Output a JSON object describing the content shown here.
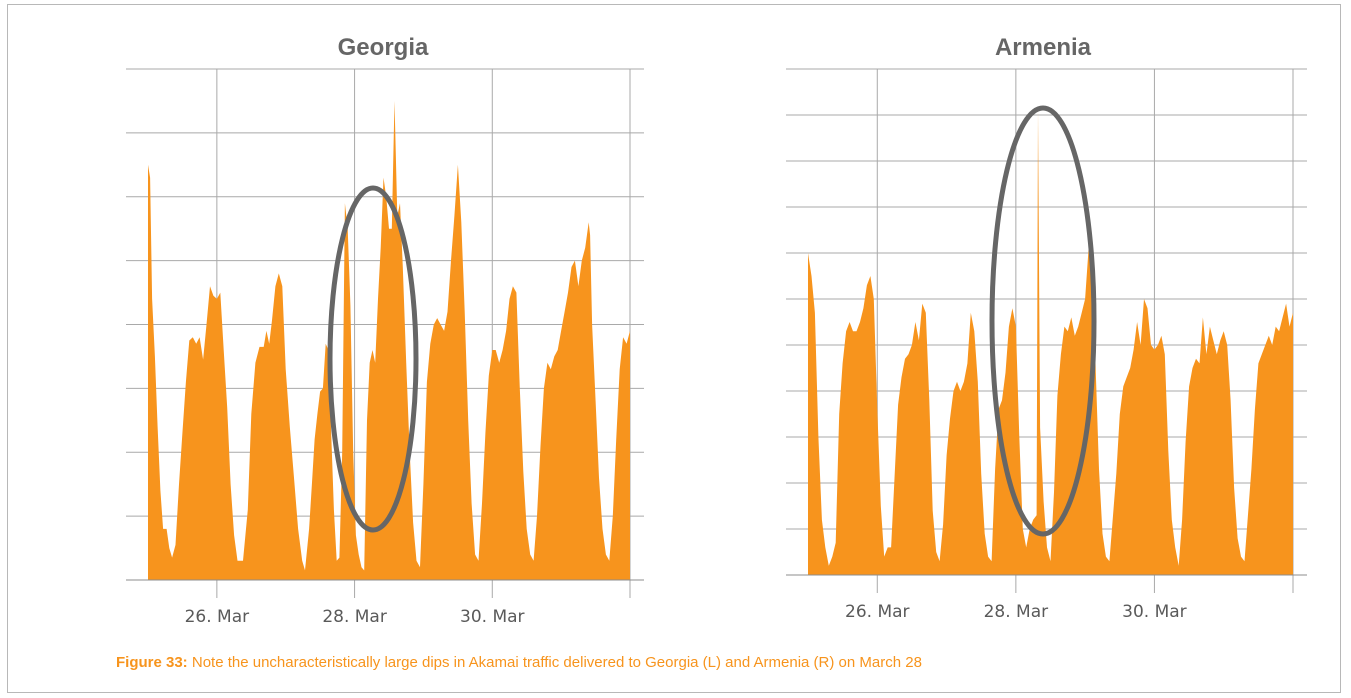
{
  "colors": {
    "area": "#f7941d",
    "ellipse": "#666666",
    "grid": "#a9a9a9",
    "caption": "#f7941d"
  },
  "caption": {
    "label": "Figure 33:",
    "text": "Note the uncharacteristically large dips in Akamai traffic delivered to Georgia (L) and Armenia (R) on March 28"
  },
  "chart_data": [
    {
      "type": "area",
      "title": "Georgia",
      "xlabel": "",
      "ylabel": "",
      "x_unit": "days (March)",
      "xlim": [
        25.0,
        32.0
      ],
      "ylim": [
        0,
        8
      ],
      "x_ticks": [
        {
          "x": 26,
          "label": "26. Mar"
        },
        {
          "x": 28,
          "label": "28. Mar"
        },
        {
          "x": 30,
          "label": "30. Mar"
        }
      ],
      "grid": true,
      "annotation": {
        "shape": "ellipse",
        "highlights": "dip around 28. Mar"
      },
      "points": [
        [
          25.0,
          6.5
        ],
        [
          25.03,
          6.3
        ],
        [
          25.06,
          4.4
        ],
        [
          25.1,
          3.5
        ],
        [
          25.14,
          2.4
        ],
        [
          25.18,
          1.4
        ],
        [
          25.22,
          0.8
        ],
        [
          25.27,
          0.8
        ],
        [
          25.31,
          0.5
        ],
        [
          25.35,
          0.35
        ],
        [
          25.4,
          0.55
        ],
        [
          25.45,
          1.5
        ],
        [
          25.5,
          2.3
        ],
        [
          25.55,
          3.1
        ],
        [
          25.6,
          3.75
        ],
        [
          25.65,
          3.8
        ],
        [
          25.7,
          3.7
        ],
        [
          25.75,
          3.8
        ],
        [
          25.8,
          3.45
        ],
        [
          25.85,
          4.0
        ],
        [
          25.9,
          4.6
        ],
        [
          25.95,
          4.45
        ],
        [
          26.0,
          4.4
        ],
        [
          26.05,
          4.5
        ],
        [
          26.1,
          3.6
        ],
        [
          26.15,
          2.7
        ],
        [
          26.2,
          1.5
        ],
        [
          26.25,
          0.7
        ],
        [
          26.3,
          0.3
        ],
        [
          26.38,
          0.3
        ],
        [
          26.45,
          1.1
        ],
        [
          26.5,
          2.6
        ],
        [
          26.56,
          3.4
        ],
        [
          26.62,
          3.65
        ],
        [
          26.68,
          3.65
        ],
        [
          26.72,
          3.9
        ],
        [
          26.76,
          3.7
        ],
        [
          26.8,
          4.05
        ],
        [
          26.85,
          4.6
        ],
        [
          26.9,
          4.8
        ],
        [
          26.95,
          4.6
        ],
        [
          27.0,
          3.3
        ],
        [
          27.06,
          2.4
        ],
        [
          27.12,
          1.6
        ],
        [
          27.18,
          0.8
        ],
        [
          27.24,
          0.3
        ],
        [
          27.28,
          0.15
        ],
        [
          27.34,
          0.8
        ],
        [
          27.38,
          1.5
        ],
        [
          27.42,
          2.2
        ],
        [
          27.46,
          2.6
        ],
        [
          27.5,
          2.95
        ],
        [
          27.54,
          3.0
        ],
        [
          27.58,
          3.7
        ],
        [
          27.62,
          3.6
        ],
        [
          27.66,
          2.3
        ],
        [
          27.7,
          1.1
        ],
        [
          27.74,
          0.3
        ],
        [
          27.78,
          0.35
        ],
        [
          27.82,
          2.0
        ],
        [
          27.86,
          5.9
        ],
        [
          27.9,
          5.5
        ],
        [
          27.94,
          4.3
        ],
        [
          27.98,
          2.0
        ],
        [
          28.02,
          0.7
        ],
        [
          28.06,
          0.4
        ],
        [
          28.1,
          0.2
        ],
        [
          28.14,
          0.15
        ],
        [
          28.18,
          2.5
        ],
        [
          28.22,
          3.4
        ],
        [
          28.26,
          3.6
        ],
        [
          28.3,
          3.4
        ],
        [
          28.34,
          4.4
        ],
        [
          28.38,
          5.2
        ],
        [
          28.42,
          6.3
        ],
        [
          28.46,
          6.0
        ],
        [
          28.5,
          5.5
        ],
        [
          28.54,
          5.5
        ],
        [
          28.58,
          7.5
        ],
        [
          28.62,
          5.7
        ],
        [
          28.66,
          5.9
        ],
        [
          28.7,
          4.9
        ],
        [
          28.75,
          3.4
        ],
        [
          28.8,
          2.0
        ],
        [
          28.85,
          0.9
        ],
        [
          28.9,
          0.3
        ],
        [
          28.95,
          0.2
        ],
        [
          29.0,
          1.5
        ],
        [
          29.05,
          3.1
        ],
        [
          29.1,
          3.7
        ],
        [
          29.15,
          4.0
        ],
        [
          29.2,
          4.1
        ],
        [
          29.25,
          4.0
        ],
        [
          29.3,
          3.9
        ],
        [
          29.35,
          4.2
        ],
        [
          29.4,
          5.0
        ],
        [
          29.45,
          5.7
        ],
        [
          29.5,
          6.5
        ],
        [
          29.55,
          5.6
        ],
        [
          29.6,
          4.2
        ],
        [
          29.65,
          2.5
        ],
        [
          29.7,
          1.2
        ],
        [
          29.75,
          0.4
        ],
        [
          29.8,
          0.3
        ],
        [
          29.85,
          1.2
        ],
        [
          29.9,
          2.3
        ],
        [
          29.95,
          3.2
        ],
        [
          30.0,
          3.6
        ],
        [
          30.05,
          3.6
        ],
        [
          30.1,
          3.4
        ],
        [
          30.15,
          3.6
        ],
        [
          30.2,
          3.9
        ],
        [
          30.25,
          4.4
        ],
        [
          30.3,
          4.6
        ],
        [
          30.35,
          4.5
        ],
        [
          30.4,
          3.0
        ],
        [
          30.45,
          1.7
        ],
        [
          30.5,
          0.8
        ],
        [
          30.55,
          0.4
        ],
        [
          30.6,
          0.3
        ],
        [
          30.65,
          1.0
        ],
        [
          30.7,
          2.1
        ],
        [
          30.75,
          3.0
        ],
        [
          30.8,
          3.4
        ],
        [
          30.85,
          3.3
        ],
        [
          30.9,
          3.5
        ],
        [
          30.95,
          3.6
        ],
        [
          31.0,
          3.9
        ],
        [
          31.05,
          4.2
        ],
        [
          31.1,
          4.5
        ],
        [
          31.15,
          4.9
        ],
        [
          31.2,
          5.0
        ],
        [
          31.25,
          4.6
        ],
        [
          31.3,
          5.0
        ],
        [
          31.35,
          5.2
        ],
        [
          31.4,
          5.6
        ],
        [
          31.42,
          5.4
        ],
        [
          31.45,
          4.0
        ],
        [
          31.5,
          2.8
        ],
        [
          31.55,
          1.6
        ],
        [
          31.6,
          0.8
        ],
        [
          31.65,
          0.4
        ],
        [
          31.7,
          0.3
        ],
        [
          31.75,
          1.0
        ],
        [
          31.8,
          2.2
        ],
        [
          31.85,
          3.3
        ],
        [
          31.9,
          3.8
        ],
        [
          31.95,
          3.7
        ],
        [
          32.0,
          3.9
        ]
      ]
    },
    {
      "type": "area",
      "title": "Armenia",
      "xlabel": "",
      "ylabel": "",
      "x_unit": "days (March)",
      "xlim": [
        25.0,
        32.0
      ],
      "ylim": [
        0,
        11
      ],
      "x_ticks": [
        {
          "x": 26,
          "label": "26. Mar"
        },
        {
          "x": 28,
          "label": "28. Mar"
        },
        {
          "x": 30,
          "label": "30. Mar"
        }
      ],
      "grid": true,
      "annotation": {
        "shape": "ellipse",
        "highlights": "dip around 28. Mar"
      },
      "points": [
        [
          25.0,
          7.0
        ],
        [
          25.05,
          6.5
        ],
        [
          25.1,
          5.7
        ],
        [
          25.15,
          3.0
        ],
        [
          25.2,
          1.2
        ],
        [
          25.25,
          0.6
        ],
        [
          25.3,
          0.2
        ],
        [
          25.35,
          0.4
        ],
        [
          25.4,
          0.7
        ],
        [
          25.45,
          3.5
        ],
        [
          25.5,
          4.6
        ],
        [
          25.55,
          5.3
        ],
        [
          25.6,
          5.5
        ],
        [
          25.65,
          5.3
        ],
        [
          25.7,
          5.3
        ],
        [
          25.75,
          5.5
        ],
        [
          25.8,
          5.8
        ],
        [
          25.85,
          6.3
        ],
        [
          25.9,
          6.5
        ],
        [
          25.95,
          6.0
        ],
        [
          26.0,
          3.6
        ],
        [
          26.05,
          1.5
        ],
        [
          26.1,
          0.4
        ],
        [
          26.15,
          0.6
        ],
        [
          26.2,
          0.6
        ],
        [
          26.3,
          3.7
        ],
        [
          26.35,
          4.3
        ],
        [
          26.4,
          4.7
        ],
        [
          26.45,
          4.8
        ],
        [
          26.5,
          5.0
        ],
        [
          26.55,
          5.5
        ],
        [
          26.6,
          5.1
        ],
        [
          26.65,
          5.9
        ],
        [
          26.7,
          5.7
        ],
        [
          26.75,
          3.8
        ],
        [
          26.8,
          1.4
        ],
        [
          26.85,
          0.5
        ],
        [
          26.9,
          0.3
        ],
        [
          26.95,
          1.1
        ],
        [
          27.0,
          2.6
        ],
        [
          27.05,
          3.4
        ],
        [
          27.1,
          4.0
        ],
        [
          27.15,
          4.2
        ],
        [
          27.2,
          4.0
        ],
        [
          27.25,
          4.2
        ],
        [
          27.3,
          4.6
        ],
        [
          27.35,
          5.7
        ],
        [
          27.4,
          5.3
        ],
        [
          27.45,
          4.2
        ],
        [
          27.5,
          2.2
        ],
        [
          27.55,
          0.9
        ],
        [
          27.6,
          0.4
        ],
        [
          27.65,
          0.3
        ],
        [
          27.7,
          2.3
        ],
        [
          27.75,
          3.6
        ],
        [
          27.8,
          3.8
        ],
        [
          27.85,
          4.4
        ],
        [
          27.9,
          5.4
        ],
        [
          27.95,
          5.8
        ],
        [
          28.0,
          5.4
        ],
        [
          28.05,
          3.0
        ],
        [
          28.1,
          1.0
        ],
        [
          28.15,
          0.6
        ],
        [
          28.2,
          1.0
        ],
        [
          28.25,
          1.2
        ],
        [
          28.3,
          1.3
        ],
        [
          28.32,
          10.1
        ],
        [
          28.35,
          3.2
        ],
        [
          28.4,
          1.6
        ],
        [
          28.45,
          0.6
        ],
        [
          28.5,
          0.3
        ],
        [
          28.55,
          1.8
        ],
        [
          28.6,
          3.9
        ],
        [
          28.65,
          4.8
        ],
        [
          28.7,
          5.4
        ],
        [
          28.75,
          5.3
        ],
        [
          28.8,
          5.6
        ],
        [
          28.85,
          5.2
        ],
        [
          28.9,
          5.4
        ],
        [
          28.95,
          5.7
        ],
        [
          29.0,
          6.0
        ],
        [
          29.05,
          7.1
        ],
        [
          29.1,
          6.6
        ],
        [
          29.15,
          4.6
        ],
        [
          29.2,
          2.3
        ],
        [
          29.25,
          0.9
        ],
        [
          29.3,
          0.4
        ],
        [
          29.35,
          0.3
        ],
        [
          29.45,
          2.2
        ],
        [
          29.5,
          3.5
        ],
        [
          29.55,
          4.1
        ],
        [
          29.6,
          4.3
        ],
        [
          29.65,
          4.5
        ],
        [
          29.7,
          4.9
        ],
        [
          29.75,
          5.5
        ],
        [
          29.8,
          5.0
        ],
        [
          29.85,
          6.0
        ],
        [
          29.9,
          5.8
        ],
        [
          29.95,
          5.0
        ],
        [
          30.0,
          4.9
        ],
        [
          30.05,
          5.0
        ],
        [
          30.1,
          5.2
        ],
        [
          30.15,
          4.8
        ],
        [
          30.2,
          2.7
        ],
        [
          30.25,
          1.2
        ],
        [
          30.3,
          0.6
        ],
        [
          30.35,
          0.2
        ],
        [
          30.4,
          1.2
        ],
        [
          30.45,
          2.9
        ],
        [
          30.5,
          4.1
        ],
        [
          30.55,
          4.5
        ],
        [
          30.6,
          4.7
        ],
        [
          30.65,
          4.6
        ],
        [
          30.7,
          5.6
        ],
        [
          30.75,
          4.8
        ],
        [
          30.8,
          5.4
        ],
        [
          30.85,
          5.1
        ],
        [
          30.9,
          4.8
        ],
        [
          30.95,
          5.1
        ],
        [
          31.0,
          5.3
        ],
        [
          31.05,
          5.0
        ],
        [
          31.1,
          3.8
        ],
        [
          31.15,
          1.9
        ],
        [
          31.2,
          0.8
        ],
        [
          31.25,
          0.4
        ],
        [
          31.3,
          0.3
        ],
        [
          31.4,
          2.3
        ],
        [
          31.45,
          3.6
        ],
        [
          31.5,
          4.6
        ],
        [
          31.55,
          4.8
        ],
        [
          31.6,
          5.0
        ],
        [
          31.65,
          5.2
        ],
        [
          31.7,
          5.0
        ],
        [
          31.75,
          5.4
        ],
        [
          31.8,
          5.3
        ],
        [
          31.85,
          5.6
        ],
        [
          31.9,
          5.9
        ],
        [
          31.95,
          5.4
        ],
        [
          32.0,
          5.7
        ]
      ]
    }
  ]
}
